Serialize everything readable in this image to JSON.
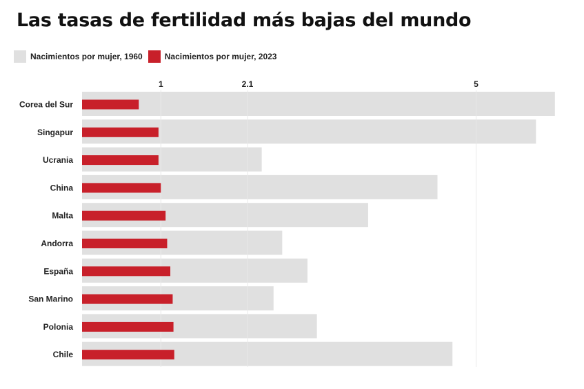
{
  "chart_data": {
    "type": "bar",
    "title": "Las tasas de fertilidad más bajas del mundo",
    "xlabel": "",
    "ylabel": "",
    "xticks": [
      1,
      2.1,
      5
    ],
    "xtick_labels": [
      "1",
      "2.1",
      "5"
    ],
    "xlim": [
      0,
      6
    ],
    "categories": [
      "Corea del Sur",
      "Singapur",
      "Ucrania",
      "China",
      "Malta",
      "Andorra",
      "España",
      "San Marino",
      "Polonia",
      "Chile"
    ],
    "series": [
      {
        "name": "Nacimientos por mujer, 1960",
        "color": "#e0e0e0",
        "values": [
          6.0,
          5.76,
          2.28,
          4.51,
          3.63,
          2.54,
          2.86,
          2.43,
          2.98,
          4.7
        ]
      },
      {
        "name": "Nacimientos por mujer, 2023",
        "color": "#c8202a",
        "values": [
          0.72,
          0.97,
          0.97,
          1.0,
          1.06,
          1.08,
          1.12,
          1.15,
          1.16,
          1.17
        ]
      }
    ],
    "legend_position": "top-left",
    "grid": true
  }
}
